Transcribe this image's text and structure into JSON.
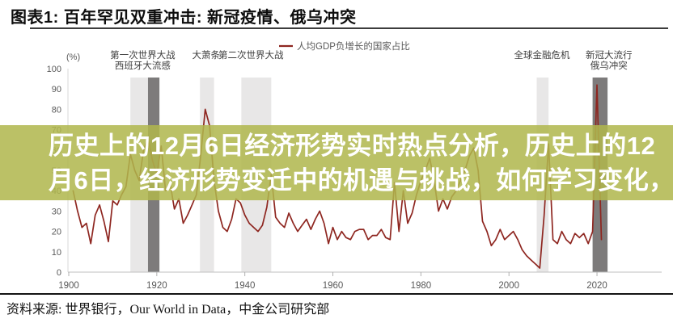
{
  "header": {
    "title": "图表1: 百年罕见双重冲击: 新冠疫情、俄乌冲突"
  },
  "banner": {
    "line1": "历史上的12月6日经济形势实时热点分析，历史上的12",
    "line2": "月6日，经济形势变迁中的机遇与挑战，如何学习变化，",
    "bg_rgba": "rgba(176,183,77,0.86)",
    "text_color": "#ffffff"
  },
  "footer": {
    "source": "资料来源: 世界银行，Our World in Data，中金公司研究部"
  },
  "chart_data": {
    "type": "line",
    "unit_label": "(%)",
    "legend": [
      {
        "label": "人均GDP负增长的国家占比",
        "color": "#8e2620"
      }
    ],
    "legend_position": "top-center",
    "grid": false,
    "x_axis": {
      "start_year": 1900,
      "end_year": 2034,
      "tick_years": [
        1900,
        1920,
        1940,
        1960,
        1980,
        2000,
        2020
      ]
    },
    "y_axis": {
      "min": 0,
      "max": 100,
      "ticks": [
        0,
        10,
        20,
        30,
        40,
        50,
        60,
        70,
        80,
        90,
        100
      ]
    },
    "band_colors": {
      "light": "#e8e7e7",
      "dark": "#7d7b7b"
    },
    "bands": [
      {
        "event": "WWI",
        "from_year": 1914.0,
        "to_year": 1918.0,
        "shade": "light"
      },
      {
        "event": "Spanish flu",
        "from_year": 1918.0,
        "to_year": 1920.6,
        "shade": "dark"
      },
      {
        "event": "Great Depression",
        "from_year": 1929.8,
        "to_year": 1933.0,
        "shade": "light"
      },
      {
        "event": "WWII",
        "from_year": 1939.2,
        "to_year": 1946.0,
        "shade": "light"
      },
      {
        "event": "Global Financial Crisis",
        "from_year": 2006.3,
        "to_year": 2009.0,
        "shade": "light"
      },
      {
        "event": "COVID / Russia-Ukraine",
        "from_year": 2019.0,
        "to_year": 2022.4,
        "shade": "dark"
      }
    ],
    "annotations": [
      {
        "year": 1916.8,
        "lines": [
          "第一次世界大战",
          "西班牙大流感"
        ]
      },
      {
        "year": 1931.2,
        "lines": [
          "大萧条"
        ]
      },
      {
        "year": 1941.4,
        "lines": [
          "第二次世界大战"
        ]
      },
      {
        "year": 2007.5,
        "lines": [
          "全球金融危机"
        ]
      },
      {
        "year": 2022.7,
        "lines": [
          "新冠大流行",
          "俄乌冲突"
        ]
      }
    ],
    "series": [
      {
        "name": "人均GDP负增长的国家占比",
        "color": "#8e2620",
        "x": [
          1901,
          1902,
          1903,
          1904,
          1905,
          1906,
          1907,
          1908,
          1909,
          1910,
          1911,
          1912,
          1913,
          1914,
          1915,
          1916,
          1917,
          1918,
          1919,
          1920,
          1921,
          1922,
          1923,
          1924,
          1925,
          1926,
          1927,
          1928,
          1929,
          1930,
          1931,
          1932,
          1933,
          1934,
          1935,
          1936,
          1937,
          1938,
          1939,
          1940,
          1941,
          1942,
          1943,
          1944,
          1945,
          1946,
          1947,
          1948,
          1949,
          1950,
          1951,
          1952,
          1953,
          1954,
          1955,
          1956,
          1957,
          1958,
          1959,
          1960,
          1961,
          1962,
          1963,
          1964,
          1965,
          1966,
          1967,
          1968,
          1969,
          1970,
          1971,
          1972,
          1973,
          1974,
          1975,
          1976,
          1977,
          1978,
          1979,
          1980,
          1981,
          1982,
          1983,
          1984,
          1985,
          1986,
          1987,
          1988,
          1989,
          1990,
          1991,
          1992,
          1993,
          1994,
          1995,
          1996,
          1997,
          1998,
          1999,
          2000,
          2001,
          2002,
          2003,
          2004,
          2005,
          2006,
          2007,
          2008,
          2009,
          2010,
          2011,
          2012,
          2013,
          2014,
          2015,
          2016,
          2017,
          2018,
          2019,
          2020,
          2021
        ],
        "values": [
          40,
          30,
          22,
          24,
          14,
          28,
          33,
          25,
          15,
          35,
          33,
          38,
          42,
          58,
          50,
          45,
          60,
          66,
          55,
          48,
          62,
          40,
          44,
          31,
          36,
          24,
          28,
          33,
          38,
          58,
          80,
          72,
          45,
          30,
          22,
          20,
          26,
          36,
          34,
          28,
          24,
          22,
          20,
          23,
          32,
          48,
          27,
          24,
          22,
          29,
          24,
          20,
          23,
          26,
          21,
          26,
          30,
          24,
          14,
          22,
          16,
          20,
          17,
          16,
          20,
          21,
          21,
          16,
          18,
          18,
          21,
          17,
          16,
          44,
          20,
          40,
          24,
          29,
          38,
          45,
          50,
          56,
          45,
          30,
          36,
          31,
          37,
          40,
          45,
          50,
          57,
          61,
          50,
          25,
          20,
          13,
          16,
          21,
          16,
          18,
          20,
          16,
          11,
          8,
          6,
          4,
          2,
          28,
          63,
          16,
          14,
          20,
          16,
          14,
          19,
          17,
          19,
          14,
          20,
          92,
          16
        ]
      }
    ]
  }
}
